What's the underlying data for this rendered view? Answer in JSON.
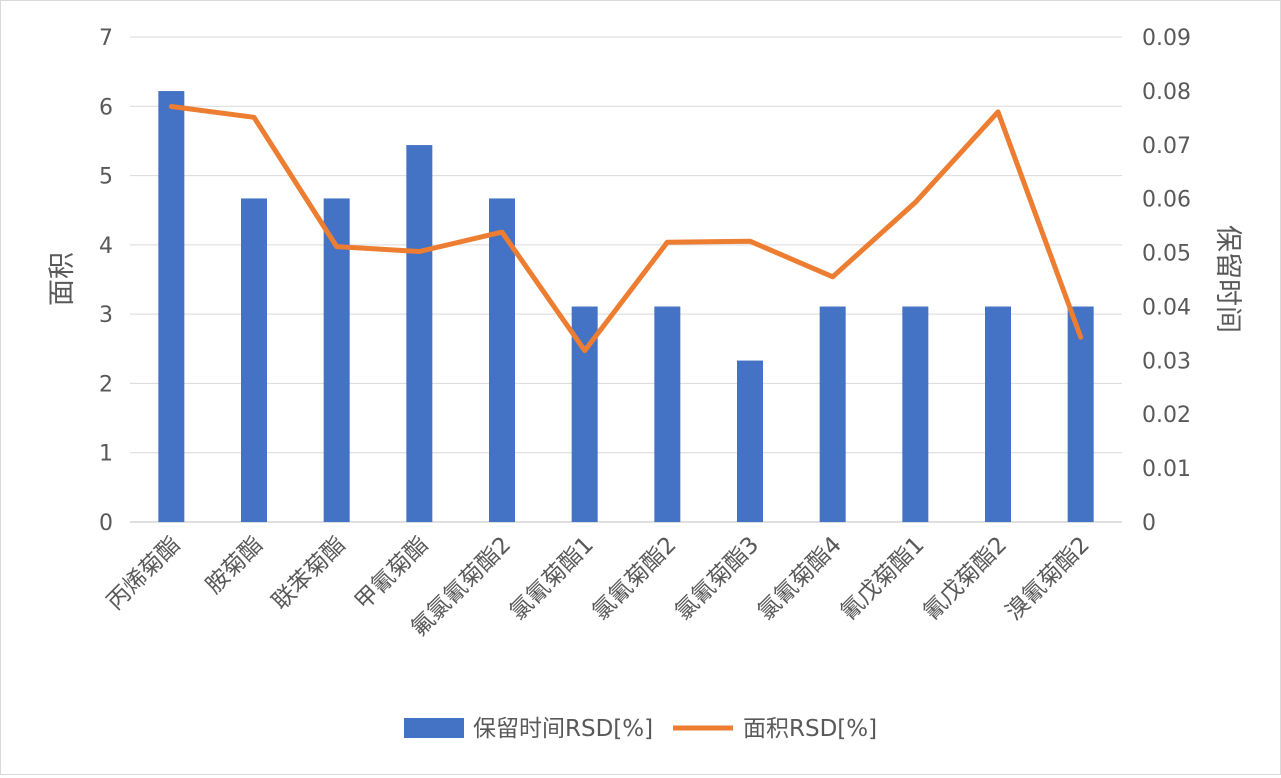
{
  "chart_data": {
    "type": "bar",
    "combo": "bar-line-dual-axis",
    "title": "",
    "categories": [
      "丙烯菊酯",
      "胺菊酯",
      "联苯菊酯",
      "甲氰菊酯",
      "氟氯氰菊酯2",
      "氯氰菊酯1",
      "氯氰菊酯2",
      "氯氰菊酯3",
      "氯氰菊酯4",
      "氰戊菊酯1",
      "氰戊菊酯2",
      "溴氰菊酯2"
    ],
    "series": [
      {
        "name": "保留时间RSD[%]",
        "type": "bar",
        "axis": "left",
        "color": "#4472C4",
        "values": [
          6.22,
          4.67,
          4.67,
          5.44,
          4.67,
          3.11,
          3.11,
          2.33,
          3.11,
          3.11,
          3.11,
          3.11
        ]
      },
      {
        "name": "面积RSD[%]",
        "type": "line",
        "axis": "right",
        "color": "#ED7D31",
        "values": [
          0.0771,
          0.0751,
          0.0511,
          0.0502,
          0.0538,
          0.0318,
          0.0519,
          0.0521,
          0.0455,
          0.0593,
          0.0761,
          0.0343
        ]
      }
    ],
    "y_left": {
      "label": "面积",
      "ylim": [
        0,
        7
      ],
      "ticks": [
        0,
        1,
        2,
        3,
        4,
        5,
        6,
        7
      ],
      "tick_labels": [
        "0",
        "1",
        "2",
        "3",
        "4",
        "5",
        "6",
        "7"
      ]
    },
    "y_right": {
      "label": "保留时间",
      "ylim": [
        0,
        0.09
      ],
      "ticks": [
        0,
        0.01,
        0.02,
        0.03,
        0.04,
        0.05,
        0.06,
        0.07,
        0.08,
        0.09
      ],
      "tick_labels": [
        "0",
        "0.01",
        "0.02",
        "0.03",
        "0.04",
        "0.05",
        "0.06",
        "0.07",
        "0.08",
        "0.09"
      ]
    },
    "grid": true,
    "legend": "bottom"
  }
}
